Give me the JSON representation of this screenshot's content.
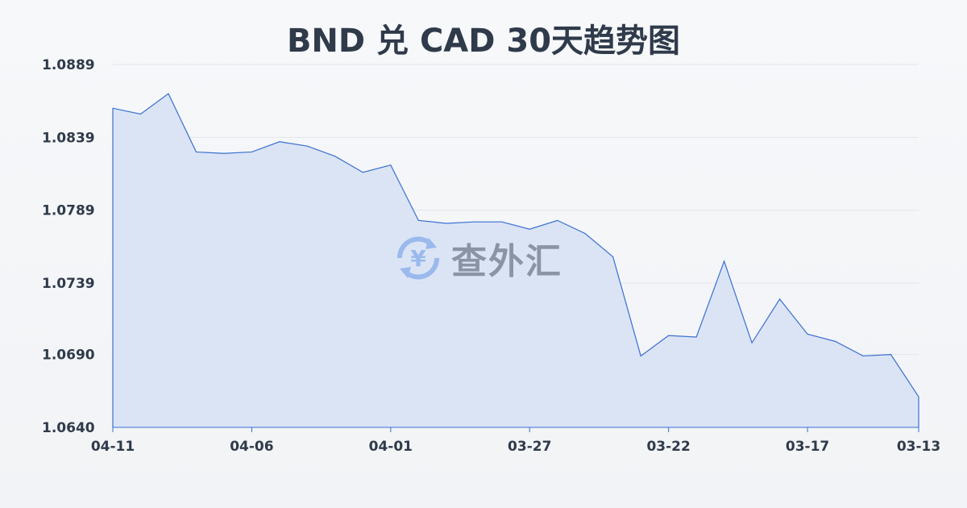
{
  "chart_data": {
    "type": "area",
    "title": "BND 兑 CAD 30天趋势图",
    "xlabel": "",
    "ylabel": "",
    "x": [
      "04-11",
      "04-10",
      "04-09",
      "04-08",
      "04-07",
      "04-06",
      "04-05",
      "04-04",
      "04-03",
      "04-02",
      "04-01",
      "03-31",
      "03-30",
      "03-29",
      "03-28",
      "03-27",
      "03-26",
      "03-25",
      "03-24",
      "03-23",
      "03-22",
      "03-21",
      "03-20",
      "03-19",
      "03-18",
      "03-17",
      "03-16",
      "03-15",
      "03-14",
      "03-13"
    ],
    "values": [
      1.0859,
      1.0855,
      1.0869,
      1.0829,
      1.0828,
      1.0829,
      1.0836,
      1.0833,
      1.0826,
      1.0815,
      1.082,
      1.0782,
      1.078,
      1.0781,
      1.0781,
      1.0776,
      1.0782,
      1.0773,
      1.0757,
      1.0689,
      1.0703,
      1.0702,
      1.0754,
      1.0698,
      1.0728,
      1.0704,
      1.0699,
      1.0689,
      1.069,
      1.0661
    ],
    "x_ticks": [
      "04-11",
      "04-06",
      "04-01",
      "03-27",
      "03-22",
      "03-17",
      "03-13"
    ],
    "y_ticks": [
      "1.0889",
      "1.0839",
      "1.0789",
      "1.0739",
      "1.0690",
      "1.0640"
    ],
    "ylim": [
      1.064,
      1.0889
    ],
    "grid": true,
    "line_color": "#3a6fd0",
    "fill_color": "#d6e1f5"
  },
  "watermark": {
    "text": "查外汇",
    "icon": "yuen-exchange-icon",
    "color": "#6f9ee8"
  }
}
